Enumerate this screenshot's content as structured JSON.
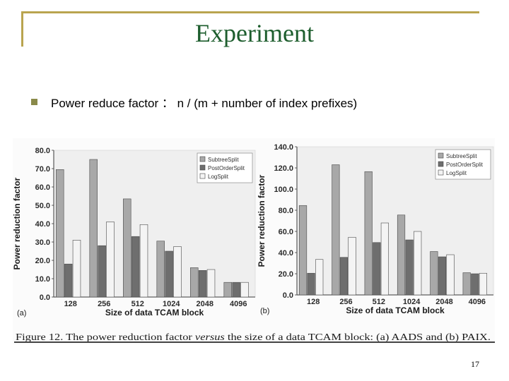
{
  "slide": {
    "title": "Experiment",
    "bullet": "Power reduce factor ： n / (m + number of index prefixes)",
    "page_number": "17"
  },
  "figure": {
    "caption_parts": [
      "Figure 12. The power reduction factor ",
      "versus",
      " the size of a data TCAM block: (a) AADS and (b) PAIX."
    ]
  },
  "colors": {
    "title": "#1e5e2e",
    "frame": "#b9a44f",
    "series": [
      "#a8a8a8",
      "#6e6e6e",
      "#f4f4f4"
    ]
  },
  "chart_data": [
    {
      "type": "bar",
      "panel_label": "(a)",
      "categories": [
        "128",
        "256",
        "512",
        "1024",
        "2048",
        "4096"
      ],
      "series": [
        {
          "name": "SubtreeSplit",
          "values": [
            69.5,
            75,
            53.5,
            30.5,
            16,
            8
          ]
        },
        {
          "name": "PostOrderSplit",
          "values": [
            18,
            28,
            33,
            25,
            14.5,
            8
          ]
        },
        {
          "name": "LogSplit",
          "values": [
            31,
            41,
            39.5,
            27.5,
            15,
            8
          ]
        }
      ],
      "ylim": [
        0,
        80
      ],
      "yticks": [
        "0.0",
        "10.0",
        "20.0",
        "30.0",
        "40.0",
        "50.0",
        "60.0",
        "70.0",
        "80.0"
      ],
      "xlabel": "Size of data TCAM block",
      "ylabel": "Power reduction factor",
      "legend": "top-right",
      "grid": false
    },
    {
      "type": "bar",
      "panel_label": "(b)",
      "categories": [
        "128",
        "256",
        "512",
        "1024",
        "2048",
        "4096"
      ],
      "series": [
        {
          "name": "SubtreeSplit",
          "values": [
            84.5,
            123,
            116.5,
            75.5,
            41,
            21
          ]
        },
        {
          "name": "PostOrderSplit",
          "values": [
            20.5,
            35.5,
            49.5,
            52,
            36,
            20
          ]
        },
        {
          "name": "LogSplit",
          "values": [
            33.5,
            54.5,
            68,
            60,
            38,
            20.5
          ]
        }
      ],
      "ylim": [
        0,
        140
      ],
      "yticks": [
        "0.0",
        "20.0",
        "40.0",
        "60.0",
        "80.0",
        "100.0",
        "120.0",
        "140.0"
      ],
      "xlabel": "Size of data TCAM block",
      "ylabel": "Power reduction factor",
      "legend": "top-right",
      "grid": false
    }
  ]
}
